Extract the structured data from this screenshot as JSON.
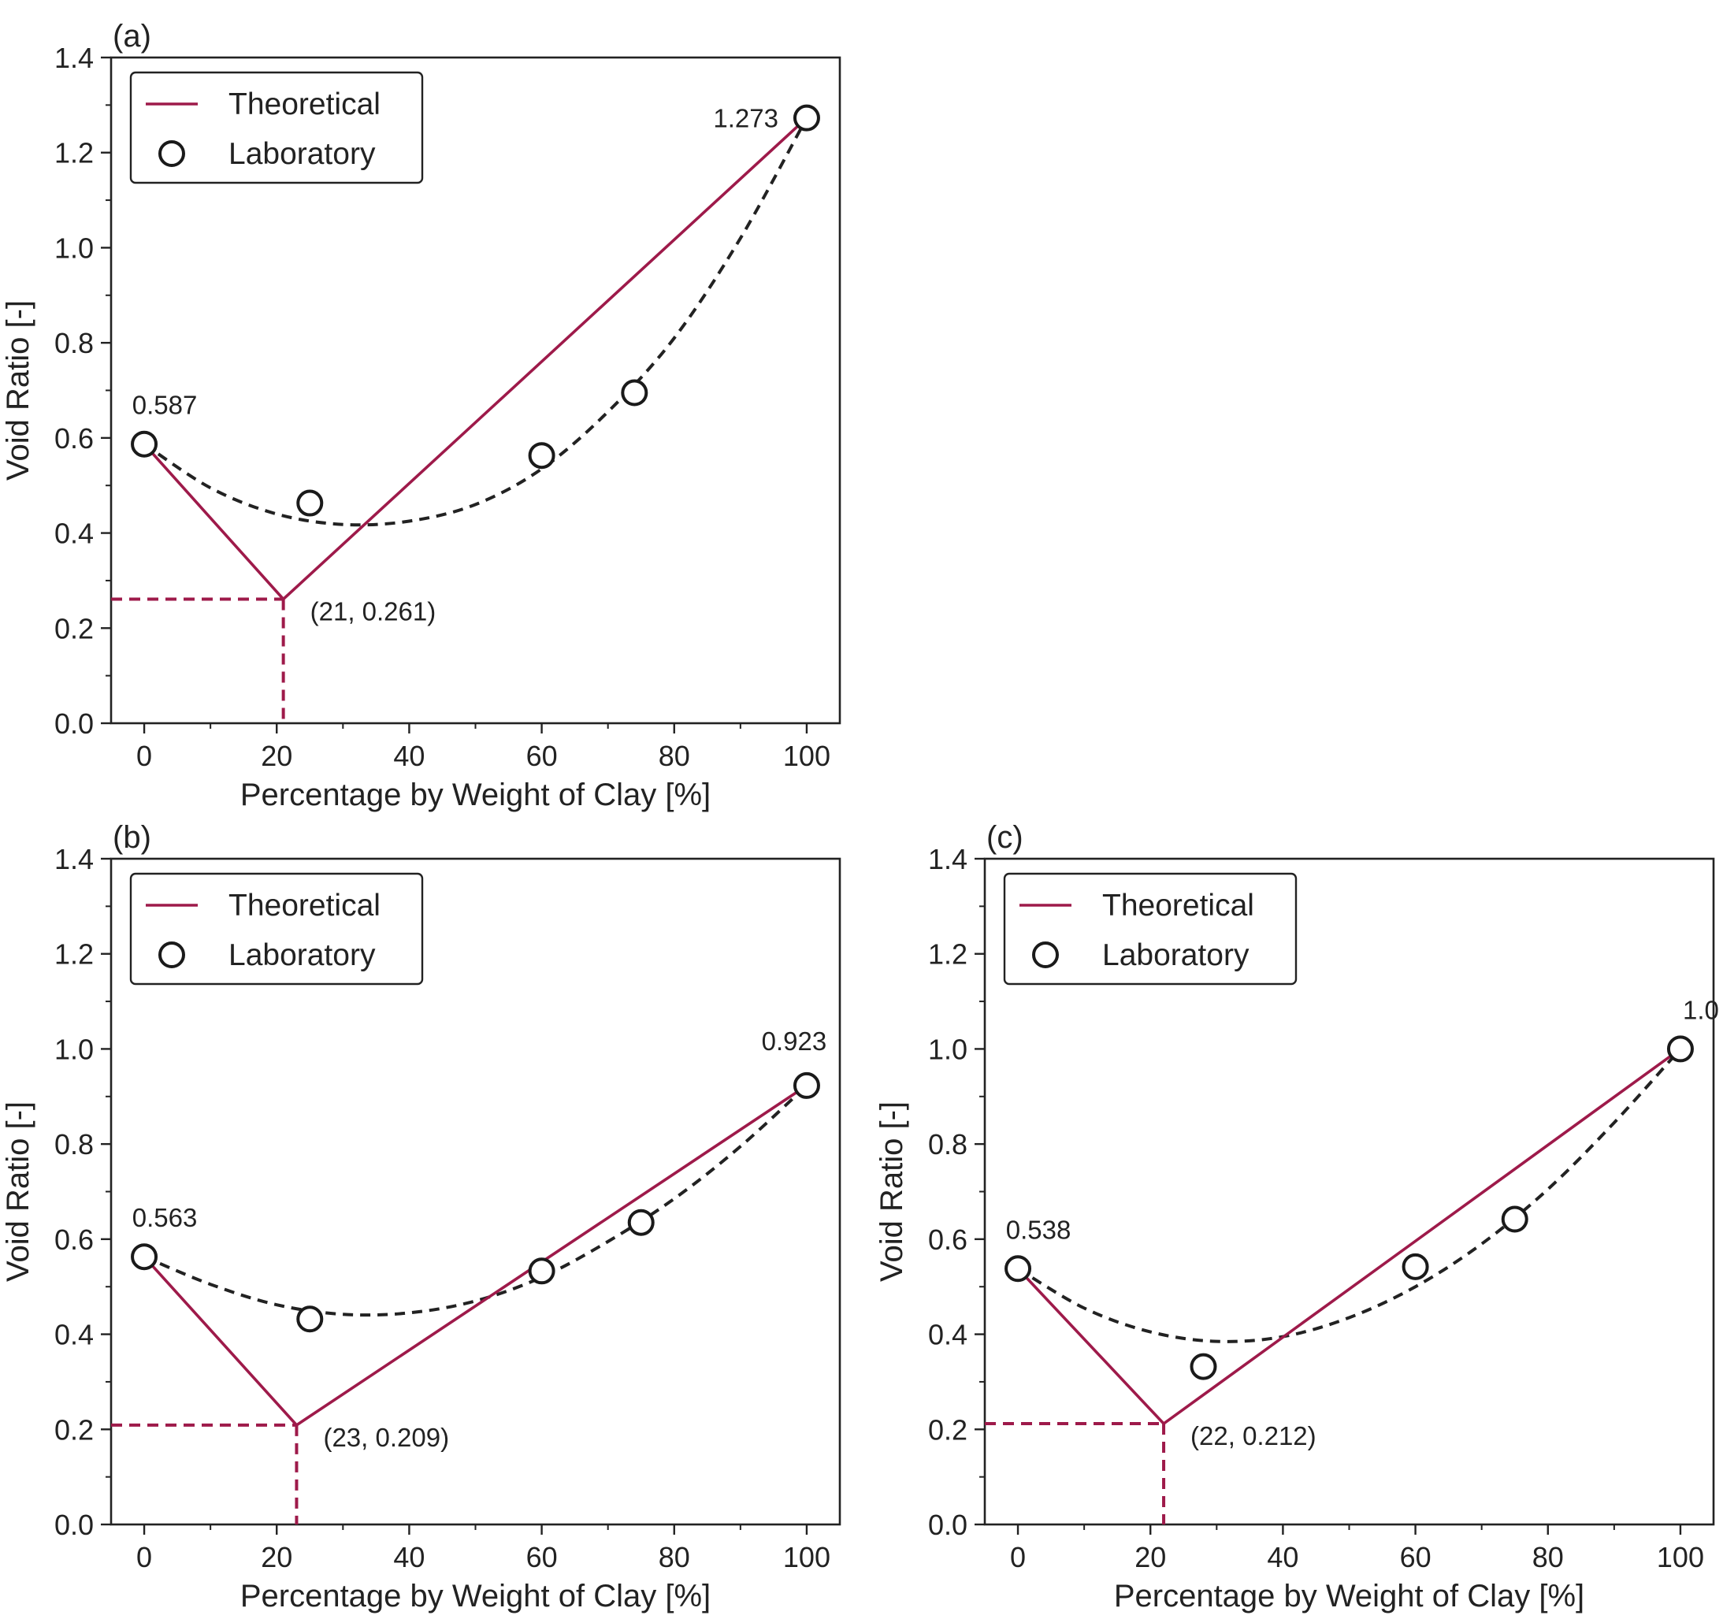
{
  "chart_data": [
    {
      "type": "line",
      "panel_label": "(a)",
      "xlabel": "Percentage by Weight of Clay [%]",
      "ylabel": "Void Ratio [-]",
      "xlim": [
        -5,
        105
      ],
      "ylim": [
        0,
        1.4
      ],
      "xticks": [
        "0",
        "20",
        "40",
        "60",
        "80",
        "100"
      ],
      "yticks": [
        "0.0",
        "0.2",
        "0.4",
        "0.6",
        "0.8",
        "1.0",
        "1.2",
        "1.4"
      ],
      "legend": {
        "position": "top-left",
        "theoretical_label": "Theoretical",
        "laboratory_label": "Laboratory"
      },
      "theoretical": {
        "x": [
          0,
          21,
          100
        ],
        "y": [
          0.587,
          0.261,
          1.273
        ]
      },
      "guide_point": {
        "x": 21,
        "y": 0.261
      },
      "laboratory": {
        "x": [
          0,
          25,
          60,
          74,
          100
        ],
        "y": [
          0.587,
          0.463,
          0.563,
          0.695,
          1.273
        ]
      },
      "fit_curve": {
        "x": [
          0,
          10,
          20,
          30,
          40,
          50,
          60,
          70,
          80,
          90,
          100
        ],
        "y": [
          0.587,
          0.495,
          0.44,
          0.418,
          0.425,
          0.46,
          0.535,
          0.655,
          0.81,
          1.02,
          1.273
        ]
      },
      "annotations": [
        {
          "text": "0.587",
          "x": 0,
          "y": 0.587,
          "anchor": "above"
        },
        {
          "text": "1.273",
          "x": 100,
          "y": 1.273,
          "anchor": "left"
        },
        {
          "text": "(21, 0.261)",
          "x": 21,
          "y": 0.261,
          "anchor": "below-right"
        }
      ],
      "colors": {
        "theoretical": "#9e1a4a",
        "fit": "#222222",
        "marker": "#1a1a1a"
      }
    },
    {
      "type": "line",
      "panel_label": "(b)",
      "xlabel": "Percentage by Weight of Clay [%]",
      "ylabel": "Void Ratio [-]",
      "xlim": [
        -5,
        105
      ],
      "ylim": [
        0,
        1.4
      ],
      "xticks": [
        "0",
        "20",
        "40",
        "60",
        "80",
        "100"
      ],
      "yticks": [
        "0.0",
        "0.2",
        "0.4",
        "0.6",
        "0.8",
        "1.0",
        "1.2",
        "1.4"
      ],
      "legend": {
        "position": "top-left",
        "theoretical_label": "Theoretical",
        "laboratory_label": "Laboratory"
      },
      "theoretical": {
        "x": [
          0,
          23,
          100
        ],
        "y": [
          0.563,
          0.209,
          0.923
        ]
      },
      "guide_point": {
        "x": 23,
        "y": 0.209
      },
      "laboratory": {
        "x": [
          0,
          25,
          60,
          75,
          100
        ],
        "y": [
          0.563,
          0.432,
          0.533,
          0.635,
          0.923
        ]
      },
      "fit_curve": {
        "x": [
          0,
          10,
          20,
          30,
          40,
          50,
          60,
          70,
          80,
          90,
          100
        ],
        "y": [
          0.563,
          0.505,
          0.462,
          0.442,
          0.445,
          0.47,
          0.52,
          0.595,
          0.685,
          0.795,
          0.923
        ]
      },
      "annotations": [
        {
          "text": "0.563",
          "x": 0,
          "y": 0.563,
          "anchor": "above"
        },
        {
          "text": "0.923",
          "x": 100,
          "y": 0.923,
          "anchor": "above-left"
        },
        {
          "text": "(23, 0.209)",
          "x": 23,
          "y": 0.209,
          "anchor": "below-right"
        }
      ],
      "colors": {
        "theoretical": "#9e1a4a",
        "fit": "#222222",
        "marker": "#1a1a1a"
      }
    },
    {
      "type": "line",
      "panel_label": "(c)",
      "xlabel": "Percentage by Weight of Clay [%]",
      "ylabel": "Void Ratio [-]",
      "xlim": [
        -5,
        105
      ],
      "ylim": [
        0,
        1.4
      ],
      "xticks": [
        "0",
        "20",
        "40",
        "60",
        "80",
        "100"
      ],
      "yticks": [
        "0.0",
        "0.2",
        "0.4",
        "0.6",
        "0.8",
        "1.0",
        "1.2",
        "1.4"
      ],
      "legend": {
        "position": "top-left",
        "theoretical_label": "Theoretical",
        "laboratory_label": "Laboratory"
      },
      "theoretical": {
        "x": [
          0,
          22,
          100
        ],
        "y": [
          0.538,
          0.212,
          1.0
        ]
      },
      "guide_point": {
        "x": 22,
        "y": 0.212
      },
      "laboratory": {
        "x": [
          0,
          28,
          60,
          75,
          100
        ],
        "y": [
          0.538,
          0.332,
          0.542,
          0.642,
          1.0
        ]
      },
      "fit_curve": {
        "x": [
          0,
          10,
          20,
          30,
          40,
          50,
          60,
          70,
          80,
          90,
          100
        ],
        "y": [
          0.538,
          0.455,
          0.405,
          0.385,
          0.395,
          0.435,
          0.5,
          0.59,
          0.705,
          0.845,
          1.0
        ]
      },
      "annotations": [
        {
          "text": "0.538",
          "x": 0,
          "y": 0.538,
          "anchor": "above"
        },
        {
          "text": "1.0",
          "x": 100,
          "y": 1.0,
          "anchor": "above"
        },
        {
          "text": "(22, 0.212)",
          "x": 22,
          "y": 0.212,
          "anchor": "below-right"
        }
      ],
      "colors": {
        "theoretical": "#9e1a4a",
        "fit": "#222222",
        "marker": "#1a1a1a"
      }
    }
  ]
}
